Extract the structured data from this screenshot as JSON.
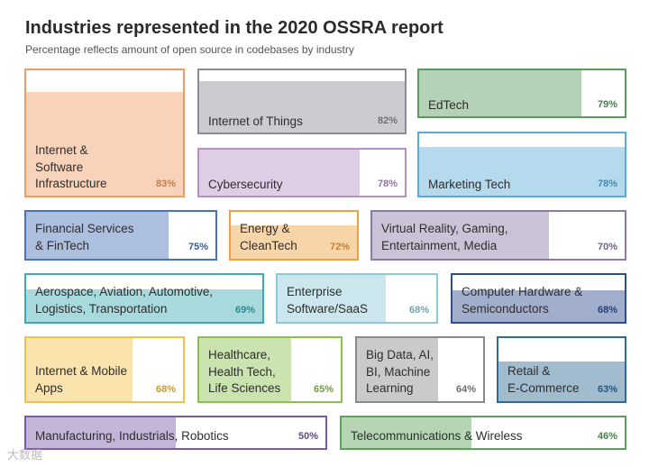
{
  "chart_data": {
    "type": "treemap",
    "title": "Industries represented in the 2020 OSSRA report",
    "subtitle": "Percentage reflects amount of open source in codebases by industry",
    "series": [
      {
        "name": "Internet &\nSoftware\nInfrastructure",
        "value": 83,
        "label": "83%",
        "color": "#ef9c63"
      },
      {
        "name": "Internet of Things",
        "value": 82,
        "label": "82%",
        "color": "#8c8c96"
      },
      {
        "name": "EdTech",
        "value": 79,
        "label": "79%",
        "color": "#5a9a5e"
      },
      {
        "name": "Cybersecurity",
        "value": 78,
        "label": "78%",
        "color": "#b890c8"
      },
      {
        "name": "Marketing Tech",
        "value": 78,
        "label": "78%",
        "color": "#5aaad8"
      },
      {
        "name": "Financial Services\n& FinTech",
        "value": 75,
        "label": "75%",
        "color": "#4a72b8"
      },
      {
        "name": "Energy &\nCleanTech",
        "value": 72,
        "label": "72%",
        "color": "#f0a040"
      },
      {
        "name": "Virtual Reality, Gaming,\nEntertainment, Media",
        "value": 70,
        "label": "70%",
        "color": "#8a7aa6"
      },
      {
        "name": "Aerospace, Aviation, Automotive,\nLogistics, Transportation",
        "value": 69,
        "label": "69%",
        "color": "#3caab4"
      },
      {
        "name": "Enterprise\nSoftware/SaaS",
        "value": 68,
        "label": "68%",
        "color": "#8ccad6"
      },
      {
        "name": "Computer Hardware &\nSemiconductors",
        "value": 68,
        "label": "68%",
        "color": "#2e4e8e"
      },
      {
        "name": "Internet & Mobile\nApps",
        "value": 68,
        "label": "68%",
        "color": "#f5c04a"
      },
      {
        "name": "Healthcare,\nHealth Tech,\nLife Sciences",
        "value": 65,
        "label": "65%",
        "color": "#8cc04e"
      },
      {
        "name": "Big Data, AI,\nBI, Machine\nLearning",
        "value": 64,
        "label": "64%",
        "color": "#8a8a8a"
      },
      {
        "name": "Retail &\nE-Commerce",
        "value": 63,
        "label": "63%",
        "color": "#2e6a94"
      },
      {
        "name": "Manufacturing, Industrials, Robotics",
        "value": 50,
        "label": "50%",
        "color": "#7a5aa6"
      },
      {
        "name": "Telecommunications & Wireless",
        "value": 46,
        "label": "46%",
        "color": "#5aa25a"
      }
    ]
  },
  "watermark": "大数据"
}
